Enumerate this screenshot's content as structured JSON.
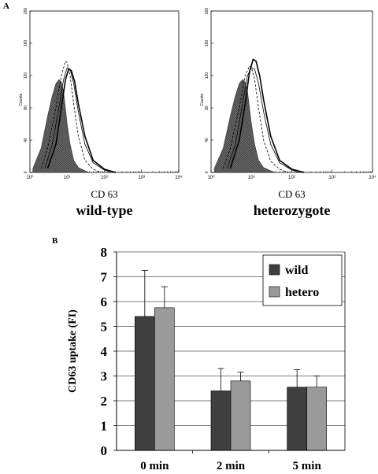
{
  "panel_a_letter": "A",
  "panel_b_letter": "B",
  "chart_data": [
    {
      "type": "area",
      "panel": "A",
      "sample": "wild-type",
      "xlabel": "CD 63",
      "ylabel": "Counts",
      "xscale": "log",
      "xlim": [
        1,
        10000
      ],
      "ylim": [
        0,
        200
      ],
      "x_tick_labels": [
        "10⁰",
        "10¹",
        "10²",
        "10³",
        "10⁴"
      ],
      "y_tick_labels": [
        "0",
        "40",
        "80",
        "120",
        "160",
        "200"
      ],
      "series": [
        {
          "style": "filled",
          "x": [
            1.2,
            2,
            3,
            4,
            5,
            6,
            7,
            8,
            10,
            12,
            15,
            20,
            30,
            40
          ],
          "y": [
            5,
            30,
            70,
            95,
            110,
            115,
            112,
            100,
            60,
            35,
            15,
            6,
            2,
            0
          ]
        },
        {
          "style": "dashed",
          "x": [
            2,
            3,
            5,
            7,
            9,
            10,
            12,
            15,
            20,
            30,
            50,
            80
          ],
          "y": [
            5,
            30,
            80,
            120,
            138,
            136,
            120,
            85,
            45,
            15,
            4,
            0
          ]
        },
        {
          "style": "thin",
          "x": [
            2.5,
            4,
            6,
            8,
            10,
            12,
            15,
            20,
            30,
            50,
            100,
            150
          ],
          "y": [
            5,
            35,
            80,
            115,
            130,
            128,
            110,
            75,
            35,
            12,
            3,
            0
          ]
        },
        {
          "style": "thick",
          "x": [
            3,
            5,
            7,
            9,
            11,
            13,
            16,
            20,
            30,
            50,
            100,
            200
          ],
          "y": [
            5,
            35,
            80,
            115,
            128,
            126,
            112,
            85,
            45,
            15,
            4,
            0
          ]
        }
      ]
    },
    {
      "type": "area",
      "panel": "A",
      "sample": "heterozygote",
      "xlabel": "CD 63",
      "ylabel": "Counts",
      "xscale": "log",
      "xlim": [
        1,
        10000
      ],
      "ylim": [
        0,
        200
      ],
      "x_tick_labels": [
        "10⁰",
        "10¹",
        "10²",
        "10³",
        "10⁴"
      ],
      "y_tick_labels": [
        "0",
        "40",
        "80",
        "120",
        "160",
        "200"
      ],
      "series": [
        {
          "style": "filled",
          "x": [
            1.2,
            2,
            3,
            4,
            5,
            6,
            7,
            8,
            10,
            12,
            15,
            20,
            30,
            40
          ],
          "y": [
            5,
            30,
            70,
            95,
            110,
            115,
            112,
            100,
            60,
            35,
            15,
            6,
            2,
            0
          ]
        },
        {
          "style": "dashed",
          "x": [
            2,
            3,
            5,
            7,
            9,
            10,
            12,
            15,
            20,
            30,
            50,
            80
          ],
          "y": [
            5,
            30,
            80,
            120,
            132,
            130,
            115,
            80,
            40,
            14,
            4,
            0
          ]
        },
        {
          "style": "thin",
          "x": [
            2.5,
            4,
            6,
            8,
            10,
            12,
            15,
            20,
            30,
            50,
            100,
            150
          ],
          "y": [
            5,
            35,
            85,
            120,
            130,
            128,
            110,
            75,
            35,
            12,
            3,
            0
          ]
        },
        {
          "style": "thick",
          "x": [
            3,
            5,
            7,
            9,
            11,
            13,
            16,
            20,
            30,
            50,
            100,
            200
          ],
          "y": [
            5,
            40,
            85,
            125,
            140,
            138,
            120,
            90,
            45,
            15,
            4,
            0
          ]
        }
      ]
    },
    {
      "type": "bar",
      "panel": "B",
      "categories": [
        "0 min",
        "2 min",
        "5 min"
      ],
      "series": [
        {
          "name": "wild",
          "color": "#3f3f3f",
          "values": [
            5.4,
            2.4,
            2.55
          ],
          "errors": [
            1.85,
            0.9,
            0.7
          ]
        },
        {
          "name": "hetero",
          "color": "#9a9a9a",
          "values": [
            5.75,
            2.8,
            2.55
          ],
          "errors": [
            0.85,
            0.35,
            0.45
          ]
        }
      ],
      "ylabel": "CD63 uptake (FI)",
      "ylim": [
        0,
        8
      ],
      "y_ticks": [
        0,
        1,
        2,
        3,
        4,
        5,
        6,
        7,
        8
      ],
      "grid": true,
      "legend_position": "top-right"
    }
  ]
}
